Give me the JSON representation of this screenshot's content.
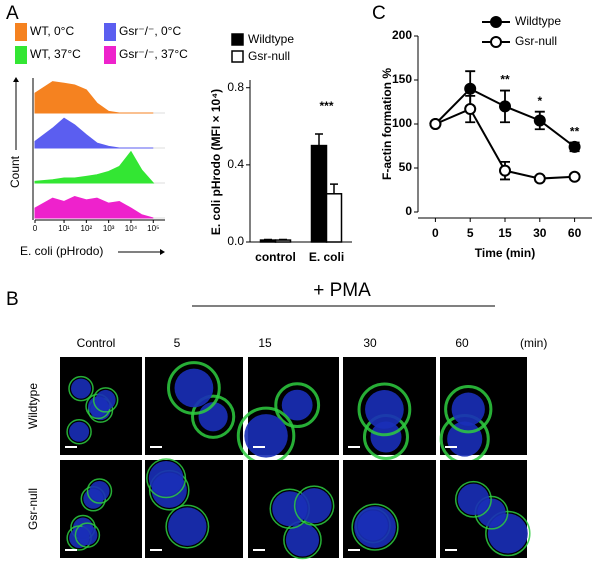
{
  "panel_labels": [
    "A",
    "B",
    "C"
  ],
  "chart_data": [
    {
      "type": "density",
      "xlabel": "E. coli (pHrodo)",
      "ylabel": "Count",
      "x": [
        0,
        3,
        10,
        30,
        100,
        300,
        1000,
        3000,
        10000,
        30000,
        100000
      ],
      "xscale": "asinh",
      "xlim": [
        0,
        200000
      ],
      "xticks": [
        0,
        {
          "value": 10,
          "label": "10¹"
        },
        {
          "value": 100,
          "label": "10²"
        },
        {
          "value": 1000,
          "label": "10³"
        },
        {
          "value": 10000,
          "label": "10⁴"
        },
        {
          "value": 100000,
          "label": "10⁵"
        }
      ],
      "series": [
        {
          "name": "WT, 0°C",
          "color": "#f58220",
          "values": [
            60,
            95,
            90,
            85,
            70,
            30,
            5,
            0,
            0,
            0,
            0
          ]
        },
        {
          "name": "Gsr⁻/⁻, 0°C",
          "color": "#5b5ef0",
          "values": [
            20,
            60,
            90,
            70,
            40,
            15,
            5,
            0,
            0,
            0,
            0
          ]
        },
        {
          "name": "WT, 37°C",
          "color": "#33e633",
          "values": [
            5,
            10,
            15,
            15,
            20,
            25,
            35,
            50,
            95,
            40,
            0
          ]
        },
        {
          "name": "Gsr⁻/⁻, 37°C",
          "color": "#ee22cc",
          "values": [
            30,
            60,
            50,
            65,
            55,
            60,
            45,
            50,
            30,
            10,
            0
          ]
        }
      ]
    },
    {
      "type": "bar",
      "ylabel": "E. coli pHrodo (MFI × 10⁴)",
      "categories": [
        "control",
        "E. coli"
      ],
      "ylim": [
        0,
        0.84
      ],
      "yticks": [
        {
          "value": 0,
          "label": "0.0"
        },
        {
          "value": 0.4,
          "label": "0.4"
        },
        {
          "value": 0.8,
          "label": "0.8"
        }
      ],
      "annotations": [
        null,
        "***"
      ],
      "series": [
        {
          "name": "Wildtype",
          "color": "#000000",
          "values": [
            0.01,
            0.5
          ],
          "errors": [
            0.003,
            0.06
          ]
        },
        {
          "name": "Gsr-null",
          "color": "#ffffff",
          "values": [
            0.01,
            0.25
          ],
          "errors": [
            0.003,
            0.05
          ]
        }
      ]
    },
    {
      "type": "line",
      "xlabel": "Time (min)",
      "ylabel": "F-actin formation %",
      "categories": [
        "0",
        "5",
        "15",
        "30",
        "60"
      ],
      "ylim": [
        0,
        200
      ],
      "yticks": [
        0,
        50,
        100,
        150,
        200
      ],
      "annotations": [
        null,
        null,
        "**",
        "*",
        "**"
      ],
      "series": [
        {
          "name": "Wildtype",
          "color": "#000000",
          "marker": "filled",
          "values": [
            100,
            140,
            120,
            104,
            74
          ],
          "errors": [
            2,
            20,
            18,
            10,
            5
          ]
        },
        {
          "name": "Gsr-null",
          "color": "#000000",
          "marker": "open",
          "values": [
            100,
            117,
            47,
            38,
            40
          ],
          "errors": [
            2,
            15,
            10,
            3,
            3
          ]
        }
      ]
    }
  ],
  "microscopy": {
    "treatment": "+ PMA",
    "columns": [
      "Control",
      "5",
      "15",
      "30",
      "60"
    ],
    "unit": "(min)",
    "rows": [
      "Wildtype",
      "Gsr-null"
    ]
  }
}
